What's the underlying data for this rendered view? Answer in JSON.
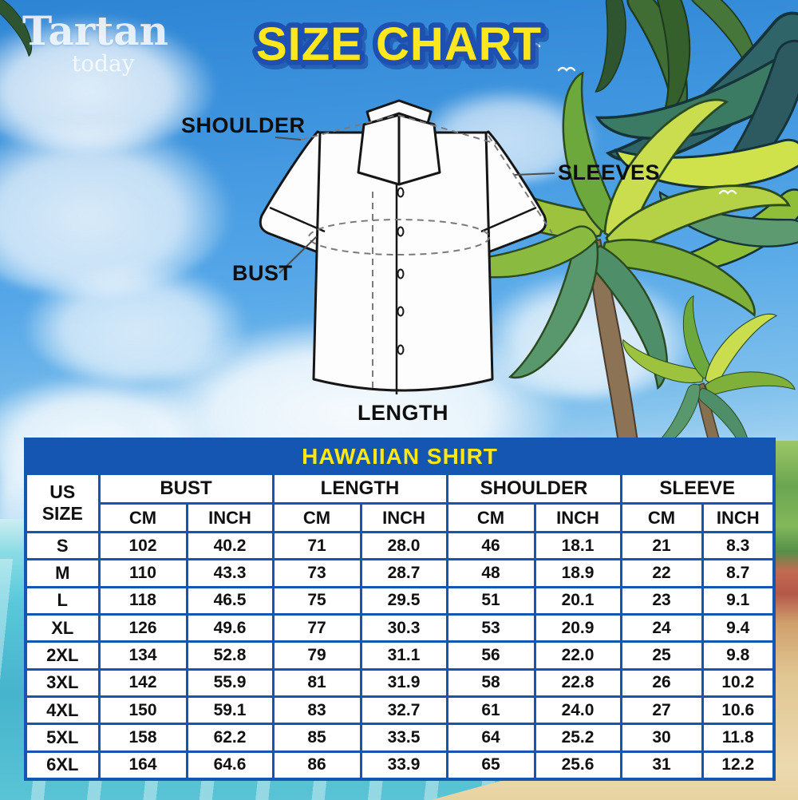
{
  "logo": {
    "brand": "Tartan",
    "sub": "today"
  },
  "title": "SIZE CHART",
  "diagram": {
    "labels": {
      "shoulder": "SHOULDER",
      "sleeves": "SLEEVES",
      "bust": "BUST",
      "length": "LENGTH"
    }
  },
  "table": {
    "title": "HAWAIIAN SHIRT",
    "size_col": "US SIZE",
    "groups": [
      "BUST",
      "LENGTH",
      "SHOULDER",
      "SLEEVE"
    ],
    "units": [
      "CM",
      "INCH"
    ],
    "rows": [
      [
        "S",
        "102",
        "40.2",
        "71",
        "28.0",
        "46",
        "18.1",
        "21",
        "8.3"
      ],
      [
        "M",
        "110",
        "43.3",
        "73",
        "28.7",
        "48",
        "18.9",
        "22",
        "8.7"
      ],
      [
        "L",
        "118",
        "46.5",
        "75",
        "29.5",
        "51",
        "20.1",
        "23",
        "9.1"
      ],
      [
        "XL",
        "126",
        "49.6",
        "77",
        "30.3",
        "53",
        "20.9",
        "24",
        "9.4"
      ],
      [
        "2XL",
        "134",
        "52.8",
        "79",
        "31.1",
        "56",
        "22.0",
        "25",
        "9.8"
      ],
      [
        "3XL",
        "142",
        "55.9",
        "81",
        "31.9",
        "58",
        "22.8",
        "26",
        "10.2"
      ],
      [
        "4XL",
        "150",
        "59.1",
        "83",
        "32.7",
        "61",
        "24.0",
        "27",
        "10.6"
      ],
      [
        "5XL",
        "158",
        "62.2",
        "85",
        "33.5",
        "64",
        "25.2",
        "30",
        "11.8"
      ],
      [
        "6XL",
        "164",
        "64.6",
        "86",
        "33.9",
        "65",
        "25.6",
        "31",
        "12.2"
      ]
    ]
  },
  "colors": {
    "table_blue": "#1456b2",
    "banner_yellow": "#ffe714",
    "title_yellow": "#ffe71e",
    "title_blue": "#1d50b0",
    "sky": "#4aa0e6",
    "sea": "#56c6d8",
    "sand": "#ecd9ae"
  }
}
